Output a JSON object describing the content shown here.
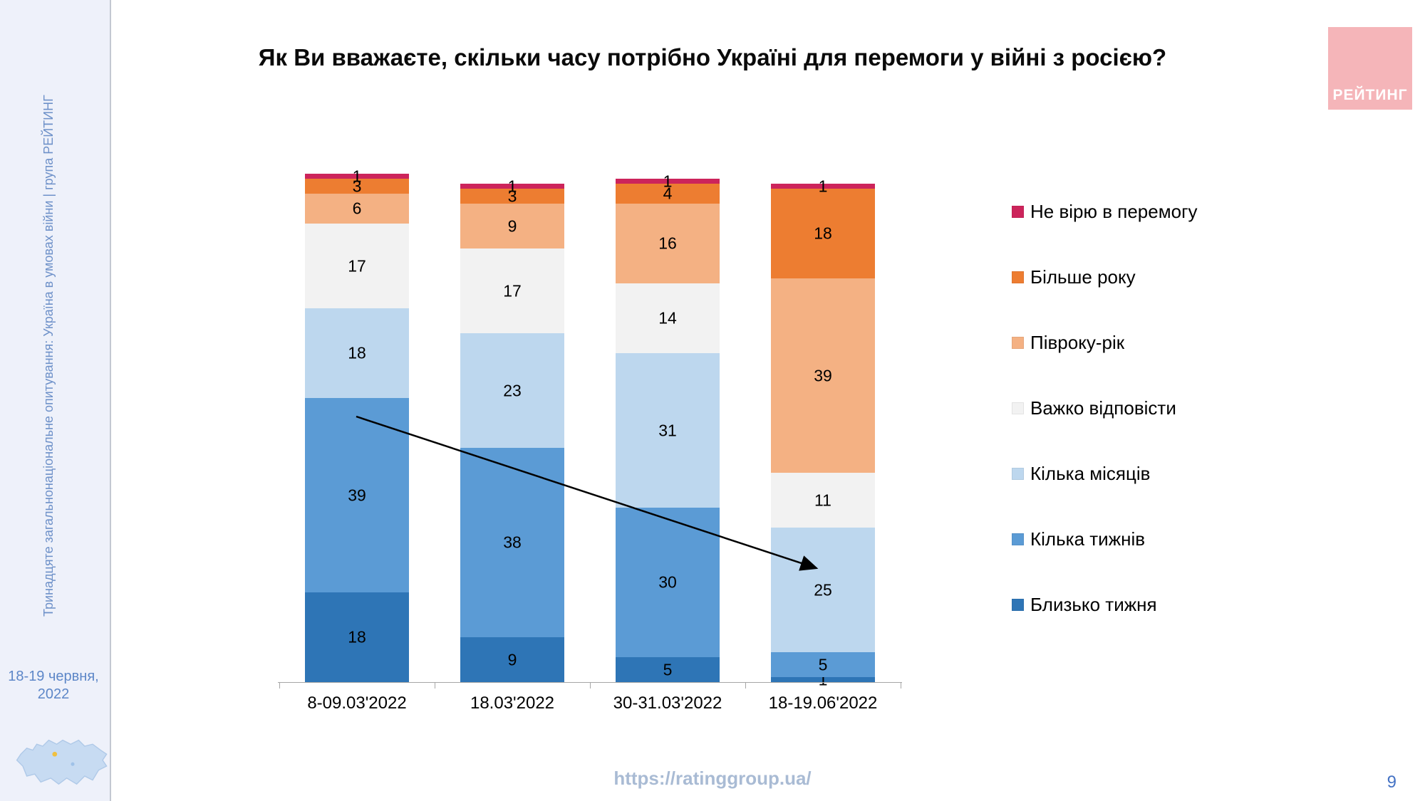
{
  "slide": {
    "title": "Як Ви вважаєте, скільки часу потрібно Україні для перемоги у війні з росією?",
    "footer_url": "https://ratinggroup.ua/",
    "page_number": "9",
    "logo_text": "РЕЙТИНГ",
    "brand_color": "#F5B5B9"
  },
  "sidebar": {
    "vertical_text": "Тринадцяте загальнонаціональне опитування: Україна в умовах війни | група РЕЙТИНГ",
    "date": "18-19 червня, 2022"
  },
  "chart_data": {
    "type": "bar",
    "stacked": true,
    "title": "Як Ви вважаєте, скільки часу потрібно Україні для перемоги у війні з росією?",
    "categories": [
      "8-09.03'2022",
      "18.03'2022",
      "30-31.03'2022",
      "18-19.06'2022"
    ],
    "series": [
      {
        "name": "Близько тижня",
        "color": "#2E75B6",
        "values": [
          18,
          9,
          5,
          1
        ]
      },
      {
        "name": "Кілька тижнів",
        "color": "#5B9BD5",
        "values": [
          39,
          38,
          30,
          5
        ]
      },
      {
        "name": "Кілька місяців",
        "color": "#BDD7EE",
        "values": [
          18,
          23,
          31,
          25
        ]
      },
      {
        "name": "Важко відповісти",
        "color": "#F2F2F2",
        "values": [
          17,
          17,
          14,
          11
        ]
      },
      {
        "name": "Півроку-рік",
        "color": "#F4B183",
        "values": [
          6,
          9,
          16,
          39
        ]
      },
      {
        "name": "Більше року",
        "color": "#ED7D31",
        "values": [
          3,
          3,
          4,
          18
        ]
      },
      {
        "name": "Не вірю в перемогу",
        "color": "#CC245B",
        "values": [
          1,
          1,
          1,
          1
        ]
      }
    ],
    "legend_order_top_to_bottom": [
      "Не вірю в перемогу",
      "Більше року",
      "Півроку-рік",
      "Важко відповісти",
      "Кілька місяців",
      "Кілька тижнів",
      "Близько тижня"
    ],
    "legend_position": "right",
    "value_unit": "percent",
    "annotation_arrow": "from few-weeks segment of 8-09.03'2022 to few-months segment of 18-19.06'2022"
  }
}
